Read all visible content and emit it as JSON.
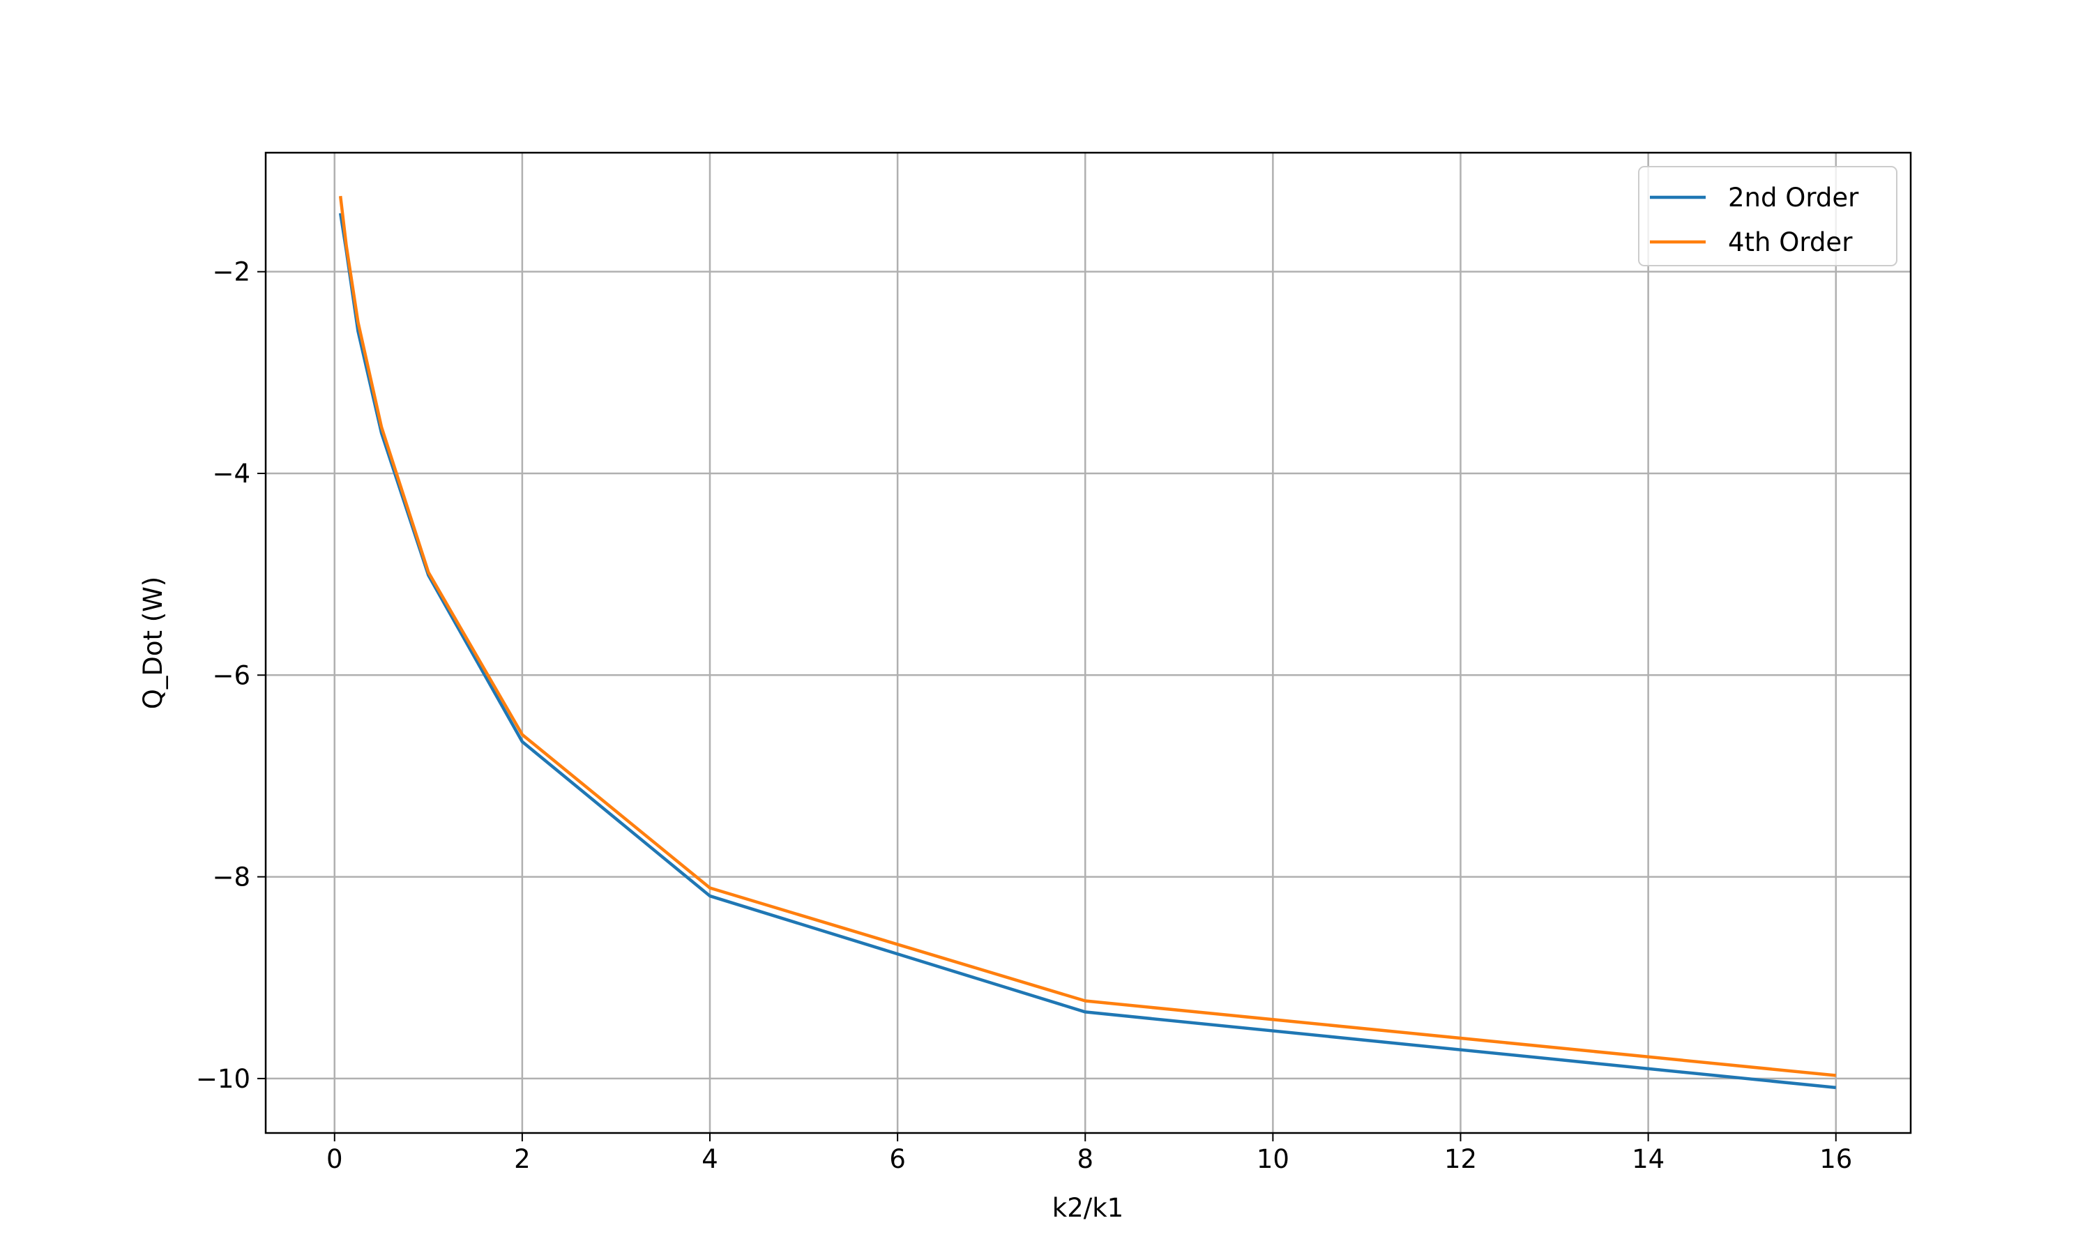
{
  "chart_data": {
    "type": "line",
    "x_label": "k2/k1",
    "y_label": "Q_Dot (W)",
    "x": [
      0.0625,
      0.125,
      0.25,
      0.5,
      1,
      2,
      4,
      8,
      16
    ],
    "series": [
      {
        "name": "2nd Order",
        "color": "#1f77b4",
        "values": [
          -1.42,
          -1.79,
          -2.59,
          -3.6,
          -5.01,
          -6.66,
          -8.19,
          -9.34,
          -10.09
        ]
      },
      {
        "name": "4th Order",
        "color": "#ff7f0e",
        "values": [
          -1.25,
          -1.74,
          -2.5,
          -3.54,
          -4.98,
          -6.59,
          -8.11,
          -9.23,
          -9.97
        ]
      }
    ],
    "xlim": [
      -0.734,
      16.797
    ],
    "ylim": [
      -10.54,
      -0.82
    ],
    "xticks": [
      0,
      2,
      4,
      6,
      8,
      10,
      12,
      14,
      16
    ],
    "yticks": [
      {
        "value": -10,
        "label": "−10"
      },
      {
        "value": -8,
        "label": "−8"
      },
      {
        "value": -6,
        "label": "−6"
      },
      {
        "value": -4,
        "label": "−4"
      },
      {
        "value": -2,
        "label": "−2"
      }
    ],
    "grid": true,
    "legend": "upper right"
  }
}
